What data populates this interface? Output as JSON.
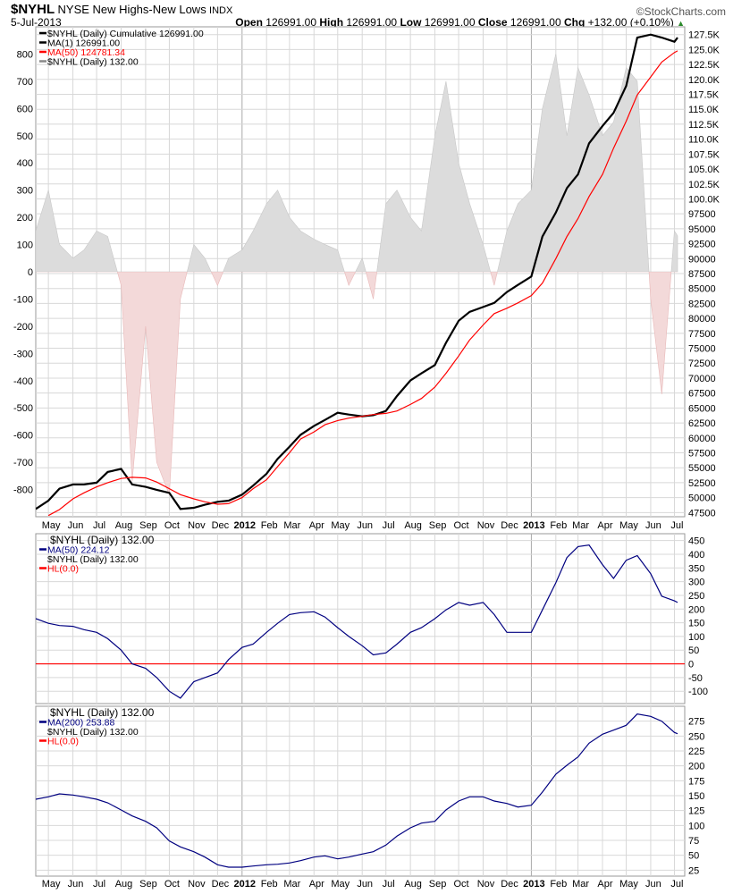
{
  "header": {
    "symbol": "$NYHL",
    "name": "NYSE New Highs-New Lows",
    "exchange": "INDX",
    "date": "5-Jul-2013",
    "brand": "©StockCharts.com",
    "open_label": "Open",
    "open": "126991.00",
    "high_label": "High",
    "high": "126991.00",
    "low_label": "Low",
    "low": "126991.00",
    "close_label": "Close",
    "close": "126991.00",
    "chg_label": "Chg",
    "chg": "+132.00 (+0.10%)",
    "chg_icon": "triangle-up-icon"
  },
  "colors": {
    "black": "#000000",
    "red": "#ff0000",
    "navy": "#000080",
    "hist_pos": "#dcdcdc",
    "hist_neg": "#f3d9d9",
    "grid": "#d8d8d8"
  },
  "chart_data": [
    {
      "type": "line",
      "panel": "main",
      "legend": [
        {
          "text": "$NYHL (Daily) Cumulative 126991.00",
          "color": "#000000"
        },
        {
          "text": "MA(1) 126991.00",
          "color": "#000000"
        },
        {
          "text": "MA(50) 124781.34",
          "color": "#ff0000"
        },
        {
          "text": "$NYHL (Daily) 132.00",
          "color": "#888888"
        }
      ],
      "left_axis": {
        "range": [
          -900,
          900
        ],
        "ticks": [
          800,
          700,
          600,
          500,
          400,
          300,
          200,
          100,
          0,
          -100,
          -200,
          -300,
          -400,
          -500,
          -600,
          -700,
          -800
        ]
      },
      "right_axis": {
        "range": [
          46800,
          128800
        ],
        "ticks": [
          "127.5K",
          "125.0K",
          "122.5K",
          "120.0K",
          "117.5K",
          "115.0K",
          "112.5K",
          "110.0K",
          "107.5K",
          "105.0K",
          "102.5K",
          "100.0K",
          "97500",
          "95000",
          "92500",
          "90000",
          "87500",
          "85000",
          "82500",
          "80000",
          "77500",
          "75000",
          "72500",
          "70000",
          "67500",
          "65000",
          "62500",
          "60000",
          "57500",
          "55000",
          "52500",
          "50000",
          "47500"
        ],
        "tick_values": [
          127500,
          125000,
          122500,
          120000,
          117500,
          115000,
          112500,
          110000,
          107500,
          105000,
          102500,
          100000,
          97500,
          95000,
          92500,
          90000,
          87500,
          85000,
          82500,
          80000,
          77500,
          75000,
          72500,
          70000,
          67500,
          65000,
          62500,
          60000,
          57500,
          55000,
          52500,
          50000,
          47500
        ]
      },
      "series": [
        {
          "name": "$NYHL (Daily) Cumulative",
          "axis": "right",
          "color": "#000000",
          "values": [
            48100,
            49500,
            51500,
            52200,
            52200,
            52500,
            54300,
            54800,
            52200,
            51800,
            51300,
            50800,
            48100,
            48300,
            48800,
            49300,
            49500,
            50500,
            52000,
            54000,
            56500,
            58500,
            60500,
            62000,
            63000,
            64200,
            63900,
            63600,
            63800,
            64500,
            67000,
            69600,
            70800,
            72200,
            75900,
            79600,
            81100,
            81900,
            82600,
            84400,
            85600,
            87000,
            93700,
            97700,
            101800,
            104100,
            109300,
            112200,
            114400,
            118900,
            127000,
            127500,
            127000,
            126300,
            126991
          ]
        },
        {
          "name": "MA(50)",
          "axis": "right",
          "color": "#ff0000",
          "values": [
            null,
            47000,
            48000,
            49800,
            50800,
            51800,
            52500,
            53200,
            53400,
            53300,
            52600,
            51500,
            50500,
            49800,
            49300,
            48900,
            49000,
            50000,
            51500,
            53000,
            55200,
            57500,
            59800,
            61000,
            62200,
            62900,
            63300,
            63600,
            63900,
            64100,
            64500,
            65600,
            66600,
            68500,
            70800,
            73700,
            76400,
            78900,
            80800,
            81700,
            82600,
            83800,
            85900,
            90000,
            93700,
            96700,
            100400,
            104100,
            108500,
            113000,
            117400,
            120400,
            122900,
            124500,
            124781
          ]
        },
        {
          "name": "$NYHL (Daily)",
          "axis": "left",
          "type": "area",
          "values": [
            150,
            300,
            100,
            50,
            80,
            150,
            130,
            -50,
            -770,
            -200,
            -700,
            -820,
            -100,
            100,
            50,
            -50,
            50,
            80,
            150,
            250,
            300,
            200,
            150,
            120,
            100,
            80,
            -50,
            50,
            -100,
            250,
            300,
            200,
            150,
            500,
            700,
            400,
            250,
            100,
            -50,
            150,
            250,
            300,
            600,
            800,
            500,
            750,
            650,
            500,
            550,
            750,
            700,
            -100,
            -450,
            150,
            132
          ]
        }
      ]
    },
    {
      "type": "line",
      "panel": "ma50",
      "legend": [
        {
          "text": "$NYHL (Daily) 132.00",
          "color": "#000000"
        },
        {
          "text": "MA(50) 224.12",
          "color": "#000080"
        },
        {
          "text": "$NYHL (Daily) 132.00",
          "color": "#000000"
        },
        {
          "text": "HL(0.0)",
          "color": "#ff0000"
        }
      ],
      "right_axis": {
        "range": [
          -145,
          475
        ],
        "ticks": [
          "450",
          "400",
          "350",
          "300",
          "250",
          "200",
          "150",
          "100",
          "50",
          "0",
          "-50",
          "-100"
        ],
        "tick_values": [
          450,
          400,
          350,
          300,
          250,
          200,
          150,
          100,
          50,
          0,
          -50,
          -100
        ]
      },
      "hline": 0,
      "series": [
        {
          "name": "MA(50)",
          "color": "#000080",
          "values": [
            165,
            148,
            140,
            137,
            125,
            115,
            92,
            50,
            0,
            -16,
            -50,
            -100,
            -125,
            -65,
            -50,
            -33,
            16,
            60,
            72,
            115,
            148,
            180,
            187,
            190,
            171,
            132,
            100,
            66,
            33,
            40,
            72,
            115,
            132,
            165,
            197,
            224,
            214,
            224,
            180,
            115,
            115,
            115,
            197,
            296,
            388,
            428,
            434,
            362,
            312,
            378,
            395,
            329,
            247,
            230,
            224
          ]
        }
      ]
    },
    {
      "type": "line",
      "panel": "ma200",
      "legend": [
        {
          "text": "$NYHL (Daily) 132.00",
          "color": "#000000"
        },
        {
          "text": "MA(200) 253.88",
          "color": "#000080"
        },
        {
          "text": "$NYHL (Daily) 132.00",
          "color": "#000000"
        },
        {
          "text": "HL(0.0)",
          "color": "#ff0000"
        }
      ],
      "right_axis": {
        "range": [
          15,
          300
        ],
        "ticks": [
          "275",
          "250",
          "225",
          "200",
          "175",
          "150",
          "125",
          "100",
          "75",
          "50",
          "25"
        ],
        "tick_values": [
          275,
          250,
          225,
          200,
          175,
          150,
          125,
          100,
          75,
          50,
          25
        ]
      },
      "series": [
        {
          "name": "MA(200)",
          "color": "#000080",
          "values": [
            144,
            148,
            153,
            151,
            148,
            144,
            138,
            126,
            116,
            107,
            96,
            74,
            64,
            56,
            47,
            34,
            30,
            30,
            32,
            34,
            35,
            37,
            41,
            47,
            49,
            44,
            47,
            52,
            56,
            67,
            82,
            96,
            104,
            107,
            126,
            141,
            148,
            148,
            141,
            137,
            131,
            134,
            156,
            186,
            201,
            215,
            238,
            253,
            260,
            268,
            287,
            283,
            275,
            256,
            254
          ]
        }
      ]
    }
  ],
  "dates": [
    "2011-04-15",
    "2011-05-01",
    "2011-05-15",
    "2011-06-01",
    "2011-06-15",
    "2011-07-01",
    "2011-07-15",
    "2011-08-01",
    "2011-08-15",
    "2011-09-01",
    "2011-09-15",
    "2011-10-01",
    "2011-10-15",
    "2011-11-01",
    "2011-11-15",
    "2011-12-01",
    "2011-12-15",
    "2012-01-01",
    "2012-01-15",
    "2012-02-01",
    "2012-02-15",
    "2012-03-01",
    "2012-03-15",
    "2012-04-01",
    "2012-04-15",
    "2012-05-01",
    "2012-05-15",
    "2012-06-01",
    "2012-06-15",
    "2012-07-01",
    "2012-07-15",
    "2012-08-01",
    "2012-08-15",
    "2012-09-01",
    "2012-09-15",
    "2012-10-01",
    "2012-10-15",
    "2012-11-01",
    "2012-11-15",
    "2012-12-01",
    "2012-12-15",
    "2013-01-01",
    "2013-01-15",
    "2013-02-01",
    "2013-02-15",
    "2013-03-01",
    "2013-03-15",
    "2013-04-01",
    "2013-04-15",
    "2013-05-01",
    "2013-05-15",
    "2013-06-01",
    "2013-06-15",
    "2013-07-01",
    "2013-07-05"
  ],
  "x_axis": {
    "months": [
      {
        "label": "May",
        "date": "2011-05-01"
      },
      {
        "label": "Jun",
        "date": "2011-06-01"
      },
      {
        "label": "Jul",
        "date": "2011-07-01"
      },
      {
        "label": "Aug",
        "date": "2011-08-01"
      },
      {
        "label": "Sep",
        "date": "2011-09-01"
      },
      {
        "label": "Oct",
        "date": "2011-10-01"
      },
      {
        "label": "Nov",
        "date": "2011-11-01"
      },
      {
        "label": "Dec",
        "date": "2011-12-01"
      },
      {
        "label": "2012",
        "date": "2012-01-01",
        "bold": true
      },
      {
        "label": "Feb",
        "date": "2012-02-01"
      },
      {
        "label": "Mar",
        "date": "2012-03-01"
      },
      {
        "label": "Apr",
        "date": "2012-04-01"
      },
      {
        "label": "May",
        "date": "2012-05-01"
      },
      {
        "label": "Jun",
        "date": "2012-06-01"
      },
      {
        "label": "Jul",
        "date": "2012-07-01"
      },
      {
        "label": "Aug",
        "date": "2012-08-01"
      },
      {
        "label": "Sep",
        "date": "2012-09-01"
      },
      {
        "label": "Oct",
        "date": "2012-10-01"
      },
      {
        "label": "Nov",
        "date": "2012-11-01"
      },
      {
        "label": "Dec",
        "date": "2012-12-01"
      },
      {
        "label": "2013",
        "date": "2013-01-01",
        "bold": true
      },
      {
        "label": "Feb",
        "date": "2013-02-01"
      },
      {
        "label": "Mar",
        "date": "2013-03-01"
      },
      {
        "label": "Apr",
        "date": "2013-04-01"
      },
      {
        "label": "May",
        "date": "2013-05-01"
      },
      {
        "label": "Jun",
        "date": "2013-06-01"
      },
      {
        "label": "Jul",
        "date": "2013-07-01"
      }
    ]
  }
}
